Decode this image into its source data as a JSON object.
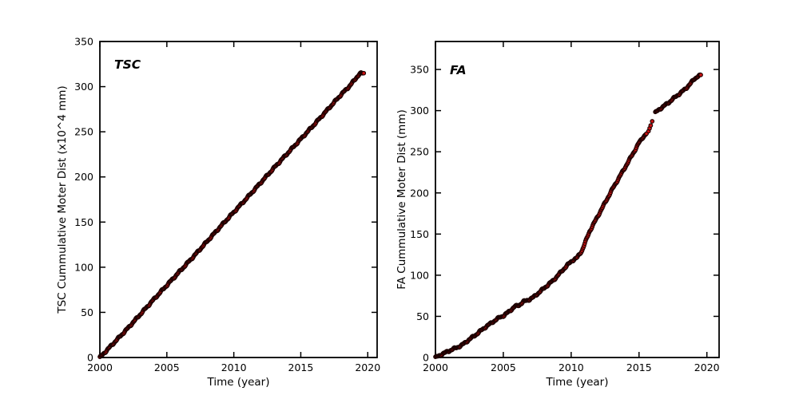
{
  "figure": {
    "background": "#ffffff",
    "description": "Two-panel scatter figure of cumulative motor distance vs time"
  },
  "chart_data": [
    {
      "id": "tsc",
      "type": "scatter",
      "annotation": "TSC",
      "xlabel": "Time (year)",
      "ylabel": "TSC Cummulative Moter Dist (x10^4 mm)",
      "xlim": [
        2000,
        2020.7
      ],
      "ylim": [
        0,
        350
      ],
      "xticks": [
        2000,
        2005,
        2010,
        2015,
        2020
      ],
      "yticks": [
        0,
        50,
        100,
        150,
        200,
        250,
        300,
        350
      ],
      "grid": false,
      "legend": "none",
      "marker": {
        "shape": "circle",
        "fill": "#cc1111",
        "edge": "#1a0000",
        "radius": 2.3
      },
      "marker_step_years": 0.05,
      "anchors": [
        [
          2000,
          0
        ],
        [
          2001,
          15.5
        ],
        [
          2002,
          31
        ],
        [
          2003,
          47.5
        ],
        [
          2004,
          64
        ],
        [
          2005,
          80
        ],
        [
          2006,
          96
        ],
        [
          2007,
          112
        ],
        [
          2008,
          128.5
        ],
        [
          2009,
          145
        ],
        [
          2010,
          161
        ],
        [
          2011,
          177
        ],
        [
          2012,
          193.5
        ],
        [
          2013,
          210
        ],
        [
          2014,
          226
        ],
        [
          2015,
          242
        ],
        [
          2016,
          258
        ],
        [
          2017,
          274.5
        ],
        [
          2018,
          291
        ],
        [
          2018.6,
          300
        ],
        [
          2019.0,
          307
        ],
        [
          2019.2,
          311
        ],
        [
          2019.35,
          313.5
        ],
        [
          2019.5,
          314.8
        ],
        [
          2019.7,
          314.6
        ]
      ],
      "gap_x": null,
      "sparse_points": []
    },
    {
      "id": "fa",
      "type": "scatter",
      "annotation": "FA",
      "xlabel": "Time (year)",
      "ylabel": "FA Cummulative Moter Dist (mm)",
      "xlim": [
        2000,
        2020.9
      ],
      "ylim": [
        0,
        384
      ],
      "xticks": [
        2000,
        2005,
        2010,
        2015,
        2020
      ],
      "yticks": [
        0,
        50,
        100,
        150,
        200,
        250,
        300,
        350
      ],
      "grid": false,
      "legend": "none",
      "marker": {
        "shape": "circle",
        "fill": "#cc1111",
        "edge": "#1a0000",
        "radius": 2.3
      },
      "marker_step_years": 0.05,
      "anchors": [
        [
          2000,
          0
        ],
        [
          2000.6,
          5
        ],
        [
          2001.2,
          9.5
        ],
        [
          2001.9,
          14.5
        ],
        [
          2002.5,
          22
        ],
        [
          2003,
          28
        ],
        [
          2003.6,
          36
        ],
        [
          2004.2,
          43
        ],
        [
          2004.75,
          49
        ],
        [
          2005.05,
          51
        ],
        [
          2005.5,
          57
        ],
        [
          2005.85,
          62
        ],
        [
          2006.15,
          63.5
        ],
        [
          2006.5,
          68
        ],
        [
          2006.85,
          70
        ],
        [
          2007.2,
          73
        ],
        [
          2007.7,
          80
        ],
        [
          2008.2,
          87
        ],
        [
          2008.7,
          94
        ],
        [
          2009.2,
          103
        ],
        [
          2009.7,
          112
        ],
        [
          2010.1,
          118
        ],
        [
          2010.45,
          121.5
        ],
        [
          2010.8,
          130
        ],
        [
          2011.35,
          153
        ],
        [
          2012.2,
          179
        ],
        [
          2013.05,
          205
        ],
        [
          2013.9,
          229
        ],
        [
          2014.7,
          252
        ],
        [
          2015.0,
          261
        ],
        [
          2015.3,
          268
        ],
        [
          2015.55,
          272
        ],
        [
          2015.7,
          275
        ],
        [
          2015.78,
          278.5
        ],
        [
          2015.86,
          282
        ],
        [
          2015.97,
          287
        ],
        [
          2016.17,
          297
        ],
        [
          2016.45,
          301
        ],
        [
          2016.7,
          304
        ],
        [
          2017.2,
          310
        ],
        [
          2017.7,
          317
        ],
        [
          2018.1,
          322
        ],
        [
          2018.45,
          327
        ],
        [
          2018.8,
          333
        ],
        [
          2019.05,
          338
        ],
        [
          2019.3,
          341.5
        ],
        [
          2019.55,
          343
        ]
      ],
      "gap_x": [
        2015.58,
        2016.15
      ],
      "sparse_points": [
        [
          2015.7,
          275
        ],
        [
          2015.78,
          278.5
        ],
        [
          2015.86,
          282
        ],
        [
          2015.97,
          287
        ]
      ]
    }
  ]
}
